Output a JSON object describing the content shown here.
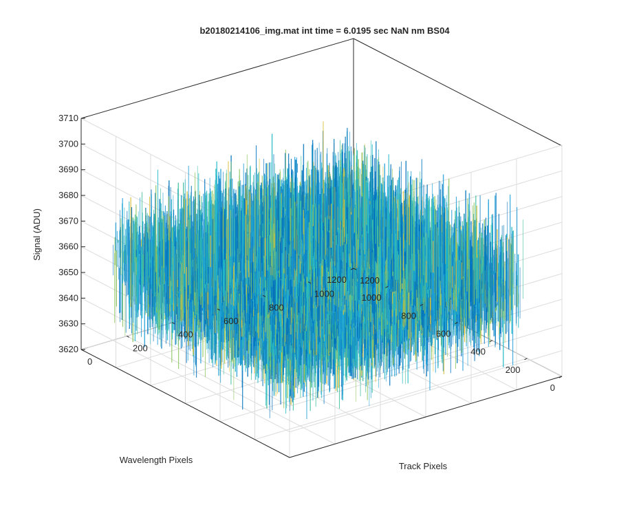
{
  "chart_data": {
    "type": "surface",
    "title": "b20180214106_img.mat int time = 6.0195 sec  NaN nm BS04",
    "xlabel": "Track Pixels",
    "ylabel": "Wavelength Pixels",
    "zlabel": "Signal (ADU)",
    "xlim": [
      0,
      1200
    ],
    "ylim": [
      0,
      1200
    ],
    "zlim": [
      3620,
      3710
    ],
    "x_ticks": [
      0,
      200,
      400,
      600,
      800,
      1000,
      1200
    ],
    "y_ticks": [
      0,
      200,
      400,
      600,
      800,
      1000,
      1200
    ],
    "z_ticks": [
      3620,
      3630,
      3640,
      3650,
      3660,
      3670,
      3680,
      3690,
      3700,
      3710
    ],
    "grid": true,
    "surface": {
      "x_range": [
        0,
        1024
      ],
      "y_range": [
        0,
        1024
      ],
      "signal_mean": 3660,
      "signal_range": [
        3620,
        3710
      ],
      "colormap": "parula",
      "colors": [
        "#0072BD",
        "#1F9DD8",
        "#22B8C8",
        "#3FBFA0",
        "#8CC45C",
        "#D9BE3A"
      ]
    }
  }
}
